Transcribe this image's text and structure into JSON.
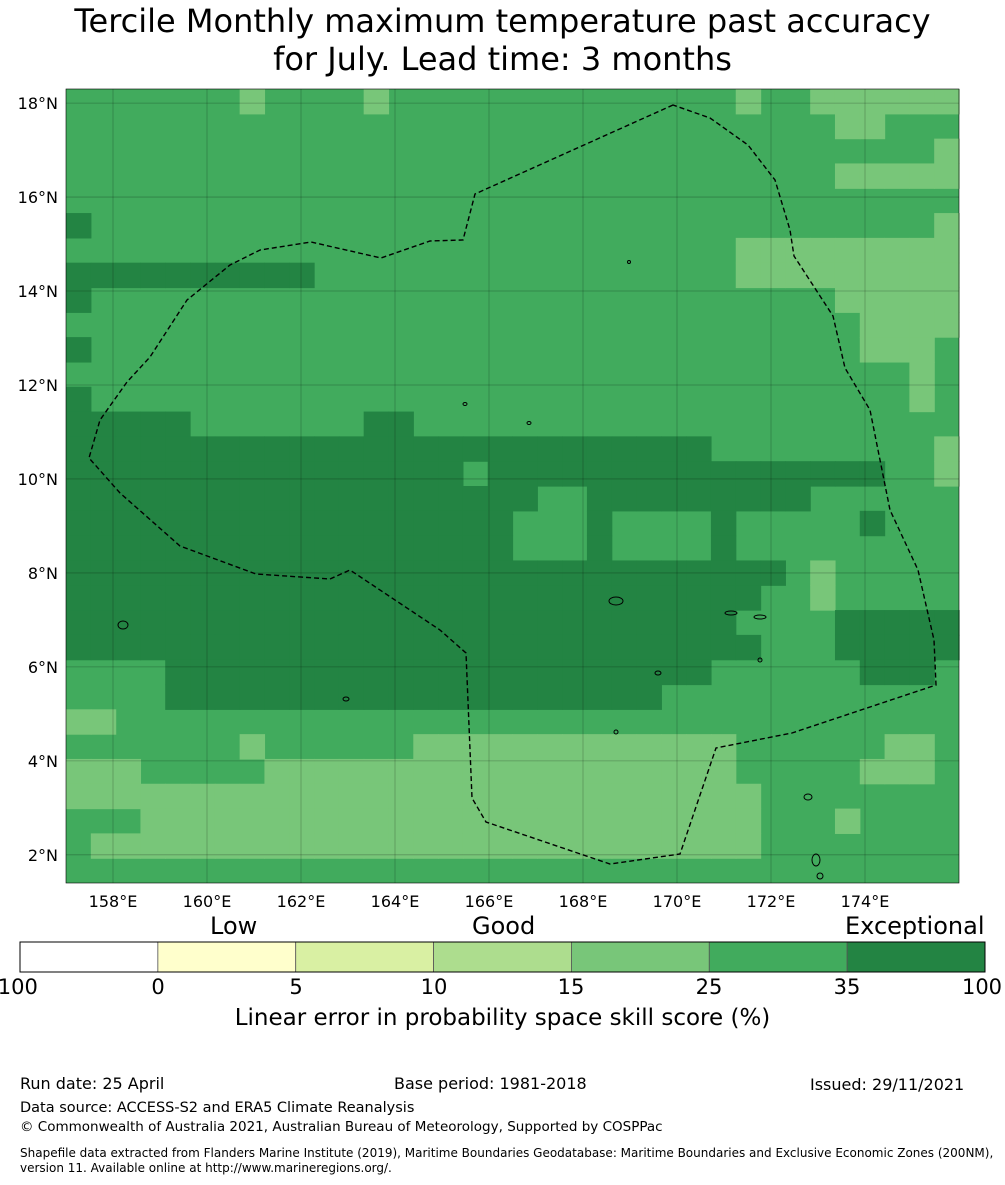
{
  "title_line1": "Tercile Monthly maximum temperature past accuracy",
  "title_line2": "for July. Lead time: 3 months",
  "map": {
    "lon_range": [
      157.0,
      176.0
    ],
    "lat_range": [
      1.4,
      18.3
    ],
    "lat_ticks": [
      "18°N",
      "16°N",
      "14°N",
      "12°N",
      "10°N",
      "8°N",
      "6°N",
      "4°N",
      "2°N"
    ],
    "lon_ticks": [
      "158°E",
      "160°E",
      "162°E",
      "164°E",
      "166°E",
      "168°E",
      "170°E",
      "172°E",
      "174°E"
    ],
    "base_fill": "#41ab5d",
    "eez_boundary": "dashed black",
    "category_colors": {
      "d": "#238443",
      "m": "#41ab5d",
      "l": "#78c679",
      "p": "#addd8e",
      "y": "#d9f0a3",
      "w": "#ffffff"
    },
    "skill_grid_rows_north_to_south": [
      "mmmmmmmlmmmmlmmmmmmmmmmmmmmlmmllllll",
      "mmmmmmmmmmmmmmmmmmmmmmmmmmmmmmmllmmm",
      "mmmmmmmmmmmmmmmmmmmmmmmmmmmmmmmmmmml",
      "mmmmmmmmmmmmmmmmmmmmmmmmmmmmmmmlllll",
      "mmmmmmmmmmmmmmmmmmmmmmmmmmmmmmmmmmmm",
      "dmmmmmmmmmmmmmmmmmmmmmmmmmmmmmmmmmml",
      "mmmmmmmmmmmmmmmmmmmmmmmmmmmlllllllll",
      "ddddddddddmmmmmmmmmmmmmmmmmlllllllll",
      "dmmmmmmmmmmmmmmmmmmmmmmmmmmmmmmlllll",
      "mmmmmmmmmmmmmmmmmmmmmmmmmmmmmmmmllll",
      "dmmmmmmmmmmmmmmmmmmmmmmmmmmmmmmmlllm",
      "mmmmmmmmmmmmmmmmmmmmmmmmmmmmmmmmmmlm",
      "dmmmmmmmmmmmmmmmmmmmmmmmmmmmmmmmmmlm",
      "dddddmmmmmmmddmmmmmmmmmmmmmmmmmmmmmm",
      "ddddddddddddddddddddddddddmmmmmmmmml",
      "ddddddddddddddddmddddddddddddddddmml",
      "dddddddddddddddddddmmdddddddddmmmmmm",
      "ddddddddddddddddddmmmdmmmmdmmmmmdmmm",
      "ddddddddddddddddddmmmdmmmmdmmmmmmmmm",
      "dddddddddddddddddddddddddddddmlmmmmm",
      "ddddddddddddddddddddddddddddmmlmmmmm",
      "dddddddddddddddddddddddddddmmmmddddd",
      "ddddddddddddddddddddddddddddmmmddddd",
      "mmmmddddddddddddddddddddddmmmmmmdddm",
      "mmmmddddddddddddddddddddmmmmmmmmmmmm",
      "llmmmmmmmmmmmmmmmmmmmmmmmmmmmmmmmmmm",
      "mmmmmmmlmmmmmmlllllllllllllmmmmmmllm",
      "lllmmmmmlllllllllllllllllllmmmmmlllm",
      "llllllllllllllllllllllllllllmmmmmmmm",
      "mmmlllllllllllllllllllllllllmmmlmmmm",
      "mlllllllllllllllllllllllllllmmmmmmmm",
      "mmmmmmmmmmmmmmmmmmmmmmmmmmmmmmmmmmmm"
    ]
  },
  "colorbar": {
    "group_labels": [
      "Low",
      "Good",
      "Exceptional"
    ],
    "colors": [
      "#ffffff",
      "#ffffcc",
      "#d9f0a3",
      "#addd8e",
      "#78c679",
      "#41ab5d",
      "#238443"
    ],
    "ticks": [
      "-100",
      "0",
      "5",
      "10",
      "15",
      "25",
      "35",
      "100"
    ],
    "label": "Linear error in probability space skill score (%)"
  },
  "footer": {
    "run_date": "Run date: 25 April",
    "base_period": "Base period: 1981-2018",
    "issued": "Issued: 29/11/2021",
    "data_source": "Data source: ACCESS-S2 and ERA5 Climate Reanalysis",
    "copyright": "© Commonwealth of Australia 2021, Australian Bureau of Meteorology, Supported by COSPPac",
    "shapefile_line1": "Shapefile data extracted from Flanders Marine Institute (2019), Maritime Boundaries Geodatabase: Maritime Boundaries and Exclusive Economic Zones (200NM),",
    "shapefile_line2": "version 11. Available online at http://www.marineregions.org/."
  }
}
